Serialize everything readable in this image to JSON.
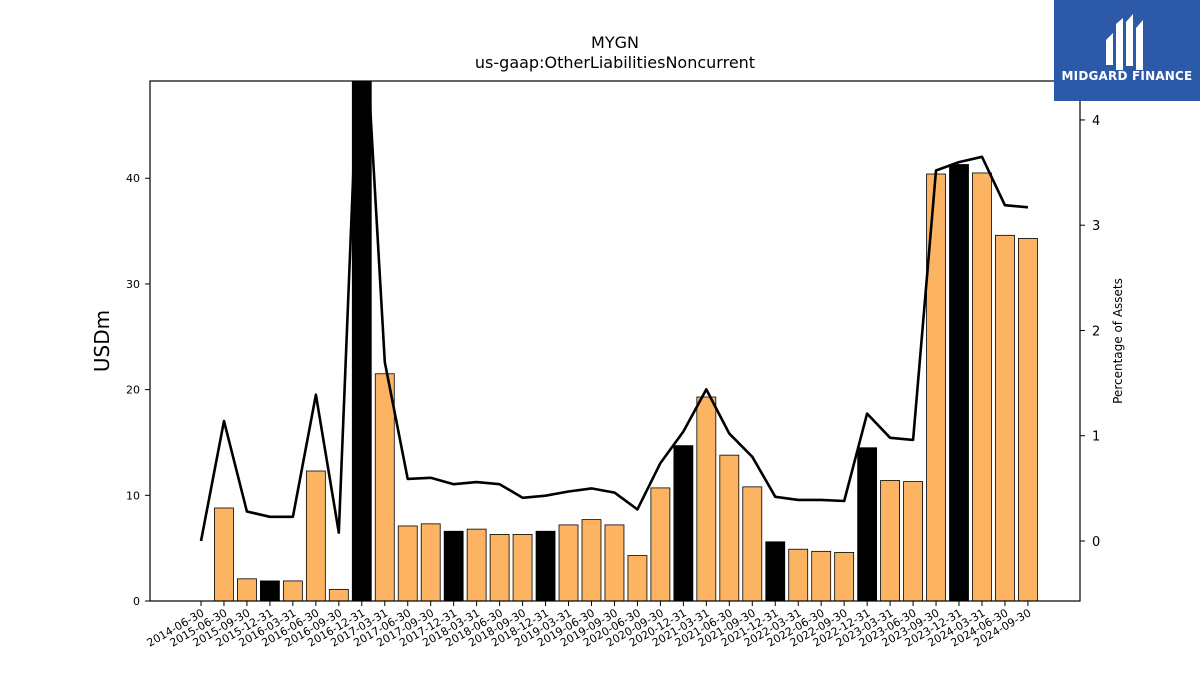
{
  "title": "MYGN",
  "subtitle": "us-gaap:OtherLiabilitiesNoncurrent",
  "logo_text": "MIDGARD FINANCE",
  "colors": {
    "bar_orange": "#fdb462",
    "bar_black": "#000000",
    "line": "#000000",
    "logo_bg": "#2d5aa8"
  },
  "chart_data": {
    "type": "bar",
    "ylabel": "USDm",
    "y2label": "Percentage of Assets",
    "ylim": [
      0,
      49.2
    ],
    "y2lim": [
      -0.57,
      4.37
    ],
    "yticks": [
      0,
      10,
      20,
      30,
      40
    ],
    "y2ticks": [
      0,
      1,
      2,
      3,
      4
    ],
    "categories": [
      "2014-06-30",
      "2015-06-30",
      "2015-09-30",
      "2015-12-31",
      "2016-03-31",
      "2016-06-30",
      "2016-09-30",
      "2016-12-31",
      "2017-03-31",
      "2017-06-30",
      "2017-09-30",
      "2017-12-31",
      "2018-03-31",
      "2018-06-30",
      "2018-09-30",
      "2018-12-31",
      "2019-03-31",
      "2019-06-30",
      "2019-09-30",
      "2020-06-30",
      "2020-09-30",
      "2020-12-31",
      "2021-03-31",
      "2021-06-30",
      "2021-09-30",
      "2021-12-31",
      "2022-03-31",
      "2022-06-30",
      "2022-09-30",
      "2022-12-31",
      "2023-03-31",
      "2023-06-30",
      "2023-09-30",
      "2023-12-31",
      "2024-03-31",
      "2024-06-30",
      "2024-09-30"
    ],
    "series": [
      {
        "type": "bar",
        "values": [
          0,
          8.8,
          2.1,
          1.9,
          1.9,
          12.3,
          1.1,
          50.0,
          21.5,
          7.1,
          7.3,
          6.6,
          6.8,
          6.3,
          6.3,
          6.6,
          7.2,
          7.7,
          7.2,
          4.3,
          10.7,
          14.7,
          19.3,
          13.8,
          10.8,
          5.6,
          4.9,
          4.7,
          4.6,
          14.5,
          11.4,
          11.3,
          40.4,
          41.3,
          40.5,
          34.6,
          34.3
        ],
        "highlight": [
          false,
          false,
          false,
          true,
          false,
          false,
          false,
          true,
          false,
          false,
          false,
          true,
          false,
          false,
          false,
          true,
          false,
          false,
          false,
          false,
          false,
          true,
          false,
          false,
          false,
          true,
          false,
          false,
          false,
          true,
          false,
          false,
          false,
          true,
          false,
          false,
          false
        ]
      },
      {
        "type": "line",
        "axis": "right",
        "values": [
          0.0,
          1.14,
          0.28,
          0.23,
          0.23,
          1.39,
          0.08,
          5.5,
          1.7,
          0.59,
          0.6,
          0.54,
          0.56,
          0.54,
          0.41,
          0.43,
          0.47,
          0.5,
          0.46,
          0.3,
          0.74,
          1.04,
          1.44,
          1.02,
          0.8,
          0.42,
          0.39,
          0.39,
          0.38,
          1.21,
          0.98,
          0.96,
          3.52,
          3.6,
          3.65,
          3.19,
          3.17
        ]
      }
    ]
  }
}
